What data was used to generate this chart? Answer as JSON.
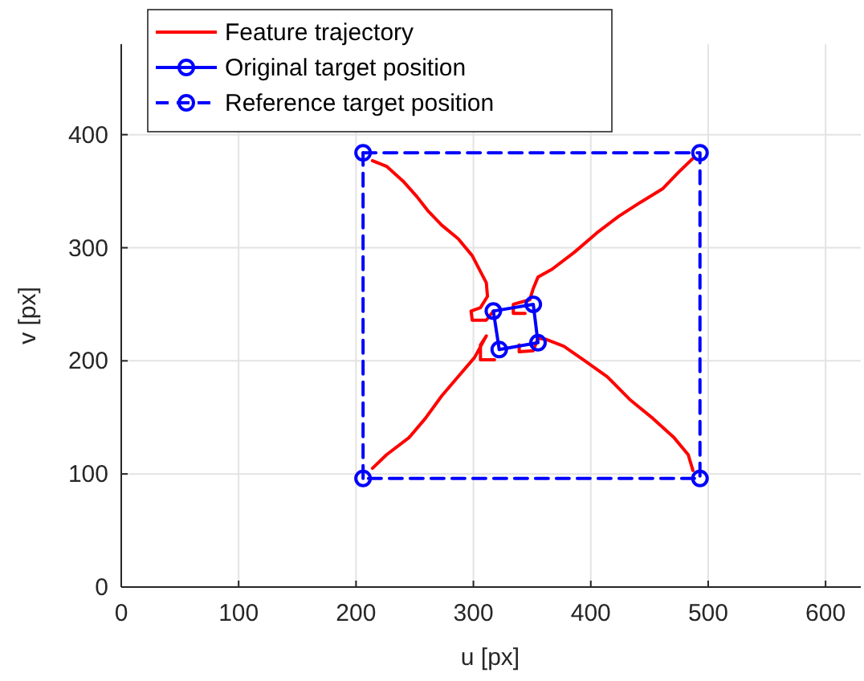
{
  "chart_data": {
    "type": "line",
    "xlabel": "u [px]",
    "ylabel": "v [px]",
    "xlim": [
      0,
      630
    ],
    "ylim": [
      0,
      480
    ],
    "xticks": [
      0,
      100,
      200,
      300,
      400,
      500,
      600
    ],
    "yticks": [
      0,
      100,
      200,
      300,
      400
    ],
    "grid": true,
    "legend": "top left",
    "series": [
      {
        "name": "Feature trajectory",
        "color": "#ff0000",
        "line_style": "solid",
        "marker": "none",
        "x": [
          214,
          226,
          240,
          252,
          261,
          273,
          287,
          299,
          306,
          311,
          312,
          306,
          298,
          299,
          311,
          317
        ],
        "values": [
          377,
          372,
          359,
          345,
          333,
          320,
          308,
          293,
          279,
          269,
          257,
          247,
          244,
          236,
          236,
          244
        ]
      },
      {
        "color": "#ff0000",
        "line_style": "solid",
        "marker": "none",
        "x": [
          487,
          475,
          461,
          442,
          424,
          405,
          386,
          367,
          355,
          351,
          348,
          334,
          334,
          344
        ],
        "values": [
          379,
          367,
          352,
          340,
          328,
          313,
          296,
          281,
          274,
          264,
          254,
          250,
          242,
          242
        ]
      },
      {
        "color": "#ff0000",
        "line_style": "solid",
        "marker": "none",
        "x": [
          214,
          226,
          245,
          259,
          273,
          287,
          301,
          311,
          306,
          306,
          318
        ],
        "values": [
          105,
          117,
          132,
          149,
          169,
          186,
          203,
          222,
          214,
          201,
          201
        ]
      },
      {
        "color": "#ff0000",
        "line_style": "solid",
        "marker": "none",
        "x": [
          487,
          483,
          471,
          453,
          433,
          414,
          395,
          377,
          362,
          355,
          351,
          339,
          339
        ],
        "values": [
          103,
          117,
          132,
          149,
          166,
          186,
          200,
          213,
          219,
          220,
          209,
          208,
          214
        ]
      },
      {
        "name": "Original target position",
        "color": "#0000ff",
        "line_style": "solid",
        "marker": "circle",
        "x": [
          317,
          351,
          355,
          322
        ],
        "values": [
          244,
          250,
          216,
          210
        ]
      },
      {
        "color": "#0000ff",
        "line_style": "solid",
        "marker": "none",
        "x": [
          322,
          317
        ],
        "values": [
          210,
          244
        ]
      },
      {
        "name": "Reference target position",
        "color": "#0000ff",
        "line_style": "dashed",
        "marker": "circle",
        "x": [
          206,
          493,
          493,
          206
        ],
        "values": [
          384,
          384,
          96,
          96
        ]
      },
      {
        "color": "#0000ff",
        "line_style": "dashed",
        "marker": "none",
        "x": [
          206,
          206
        ],
        "values": [
          96,
          384
        ]
      }
    ]
  }
}
